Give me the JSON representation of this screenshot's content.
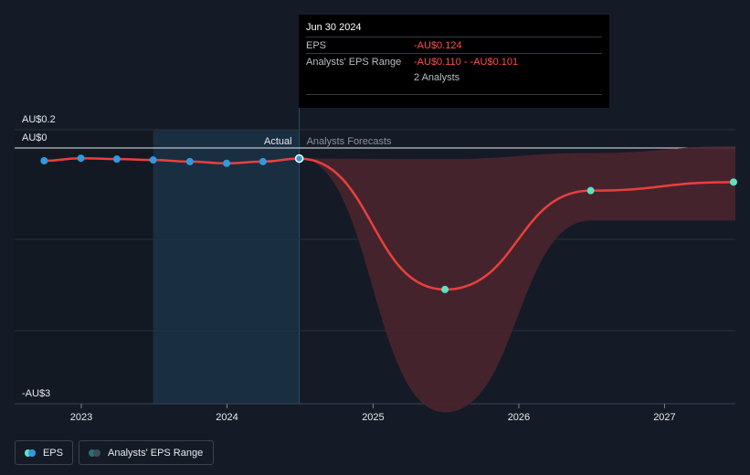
{
  "tooltip": {
    "date": "Jun 30 2024",
    "rows": [
      {
        "label": "EPS",
        "value": "-AU$0.124"
      },
      {
        "label": "Analysts' EPS Range",
        "value": "-AU$0.110 - -AU$0.101"
      }
    ],
    "analysts": "2 Analysts"
  },
  "legend": {
    "eps": "EPS",
    "range": "Analysts' EPS Range"
  },
  "colors": {
    "background": "#151b26",
    "eps_line": "#e8403f",
    "actual_dot": "#2f9bde",
    "forecast_dot": "#5fe0c4",
    "range_fill": "#4a252d",
    "highlight": "#1a3145"
  },
  "chart_data": {
    "type": "line",
    "y_tick_labels": [
      "AU$0.2",
      "AU$0",
      "-AU$3"
    ],
    "ylim": [
      -3,
      0.2
    ],
    "x_tick_labels": [
      "2023",
      "2024",
      "2025",
      "2026",
      "2027"
    ],
    "divider_labels": {
      "actual": "Actual",
      "forecast": "Analysts Forecasts"
    },
    "series": [
      {
        "role": "actual",
        "x": [
          "2022-09-30",
          "2022-12-31",
          "2023-03-31",
          "2023-06-30",
          "2023-09-30",
          "2023-12-31",
          "2024-03-31",
          "2024-06-30"
        ],
        "values": [
          -0.15,
          -0.12,
          -0.13,
          -0.14,
          -0.16,
          -0.18,
          -0.16,
          -0.124
        ]
      },
      {
        "role": "forecast",
        "x": [
          "2024-06-30",
          "2025-06-30",
          "2026-06-30",
          "2027-06-30"
        ],
        "values": [
          -0.124,
          -1.66,
          -0.5,
          -0.4
        ]
      }
    ],
    "range": {
      "x": [
        "2024-06-30",
        "2025-06-30",
        "2026-06-30",
        "2027-06-30"
      ],
      "low": [
        -0.124,
        -3.1,
        -0.85,
        -0.85
      ],
      "high": [
        -0.124,
        -0.13,
        -0.06,
        0.02
      ]
    }
  }
}
